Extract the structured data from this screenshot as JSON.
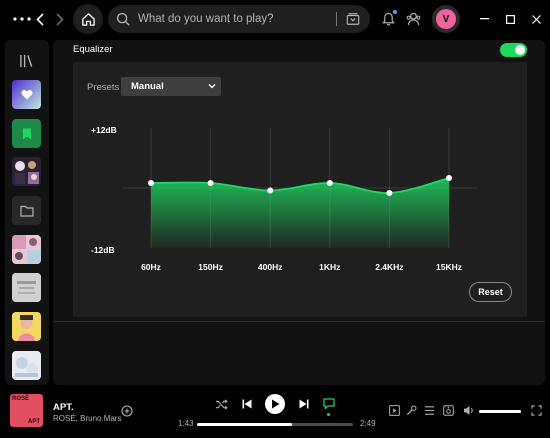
{
  "colors": {
    "accent": "#1ed760",
    "background": "#000000",
    "surface": "#121212",
    "panel": "#1f1f1f",
    "avatar": "#f0649c",
    "notification_dot": "#4da3ff"
  },
  "topbar": {
    "menu_icon": "ellipsis-icon",
    "search_placeholder": "What do you want to play?",
    "avatar_initial": "V"
  },
  "sidebar": {
    "items": [
      {
        "name": "library-toggle",
        "icon": "library-icon"
      },
      {
        "name": "liked-songs",
        "icon": "heart-icon",
        "color": "#7b5cff"
      },
      {
        "name": "your-episodes",
        "icon": "bookmark-icon",
        "color": "#1d8a4a"
      },
      {
        "name": "playlist-1",
        "icon": "playlist-cover"
      },
      {
        "name": "folder",
        "icon": "folder-icon"
      },
      {
        "name": "playlist-2",
        "icon": "playlist-cover"
      },
      {
        "name": "playlist-3",
        "icon": "playlist-cover"
      },
      {
        "name": "playlist-4",
        "icon": "playlist-cover"
      },
      {
        "name": "playlist-5",
        "icon": "playlist-cover"
      }
    ]
  },
  "equalizer": {
    "label": "Equalizer",
    "enabled": true,
    "presets_label": "Presets",
    "preset_value": "Manual",
    "max_label": "+12dB",
    "min_label": "-12dB",
    "bands": [
      {
        "freq": "60Hz",
        "db": 1.0
      },
      {
        "freq": "150Hz",
        "db": 1.0
      },
      {
        "freq": "400Hz",
        "db": -0.5
      },
      {
        "freq": "1KHz",
        "db": 1.0
      },
      {
        "freq": "2.4KHz",
        "db": -1.0
      },
      {
        "freq": "15KHz",
        "db": 2.0
      }
    ],
    "reset_label": "Reset"
  },
  "player": {
    "title": "APT.",
    "artist": "ROSÉ, Bruno Mars",
    "cover_text_1": "ROSÉ",
    "cover_text_2": "APT",
    "elapsed": "1:43",
    "duration": "2:49",
    "progress": 0.61,
    "volume": 1.0
  }
}
